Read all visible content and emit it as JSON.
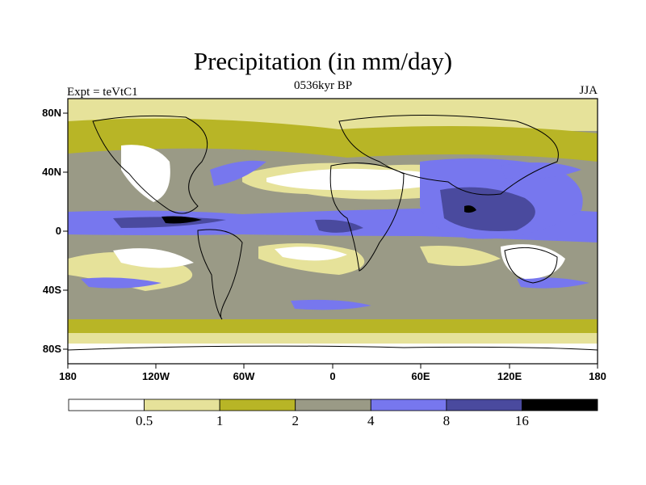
{
  "title": "Precipitation (in mm/day)",
  "subtitle": "0536kyr BP",
  "left_label": "Expt = teVtC1",
  "right_label": "JJA",
  "lat_labels": [
    "80N",
    "40N",
    "0",
    "40S",
    "80S"
  ],
  "lon_labels": [
    "180",
    "120W",
    "60W",
    "0",
    "60E",
    "120E",
    "180"
  ],
  "colorbar": {
    "colors": [
      "#ffffff",
      "#e6e29a",
      "#b8b526",
      "#9a9a86",
      "#7777ee",
      "#4a4a9e",
      "#000000"
    ],
    "labels": [
      "0.5",
      "1",
      "2",
      "4",
      "8",
      "16"
    ]
  }
}
